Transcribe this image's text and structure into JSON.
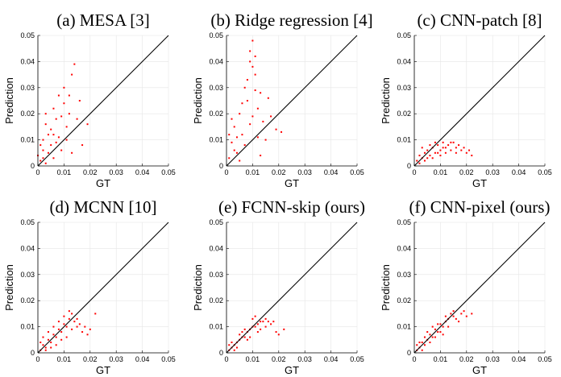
{
  "chart_data": [
    {
      "type": "scatter",
      "title": "(a) MESA [3]",
      "xlabel": "GT",
      "ylabel": "Prediction",
      "xlim": [
        0,
        0.05
      ],
      "ylim": [
        0,
        0.05
      ],
      "xticks": [
        "0",
        "0.01",
        "0.02",
        "0.03",
        "0.04",
        "0.05"
      ],
      "yticks": [
        "0",
        "0.01",
        "0.02",
        "0.03",
        "0.04",
        "0.05"
      ],
      "grid": true,
      "reference_line": "y = x",
      "point_color": "#ff0000",
      "points": [
        [
          0.001,
          0.002
        ],
        [
          0.002,
          0.006
        ],
        [
          0.003,
          0.001
        ],
        [
          0.004,
          0.012
        ],
        [
          0.005,
          0.008
        ],
        [
          0.006,
          0.003
        ],
        [
          0.007,
          0.018
        ],
        [
          0.008,
          0.011
        ],
        [
          0.009,
          0.006
        ],
        [
          0.01,
          0.024
        ],
        [
          0.011,
          0.015
        ],
        [
          0.012,
          0.02
        ],
        [
          0.013,
          0.035
        ],
        [
          0.014,
          0.039
        ],
        [
          0.006,
          0.022
        ],
        [
          0.003,
          0.016
        ],
        [
          0.002,
          0.01
        ],
        [
          0.008,
          0.027
        ],
        [
          0.01,
          0.03
        ],
        [
          0.015,
          0.018
        ],
        [
          0.017,
          0.008
        ],
        [
          0.019,
          0.016
        ],
        [
          0.001,
          0.008
        ],
        [
          0.004,
          0.005
        ],
        [
          0.005,
          0.014
        ],
        [
          0.007,
          0.009
        ],
        [
          0.009,
          0.019
        ],
        [
          0.011,
          0.01
        ],
        [
          0.012,
          0.027
        ],
        [
          0.0,
          0.004
        ],
        [
          0.002,
          0.003
        ],
        [
          0.006,
          0.012
        ],
        [
          0.013,
          0.005
        ],
        [
          0.016,
          0.025
        ],
        [
          0.003,
          0.02
        ]
      ]
    },
    {
      "type": "scatter",
      "title": "(b) Ridge regression [4]",
      "xlabel": "GT",
      "ylabel": "Prediction",
      "xlim": [
        0,
        0.05
      ],
      "ylim": [
        0,
        0.05
      ],
      "xticks": [
        "0",
        "0.01",
        "0.02",
        "0.03",
        "0.04",
        "0.05"
      ],
      "yticks": [
        "0",
        "0.01",
        "0.02",
        "0.03",
        "0.04",
        "0.05"
      ],
      "grid": true,
      "reference_line": "y = x",
      "point_color": "#ff0000",
      "points": [
        [
          0.001,
          0.003
        ],
        [
          0.002,
          0.009
        ],
        [
          0.003,
          0.015
        ],
        [
          0.004,
          0.005
        ],
        [
          0.005,
          0.02
        ],
        [
          0.006,
          0.012
        ],
        [
          0.007,
          0.03
        ],
        [
          0.008,
          0.025
        ],
        [
          0.009,
          0.04
        ],
        [
          0.01,
          0.048
        ],
        [
          0.011,
          0.035
        ],
        [
          0.012,
          0.022
        ],
        [
          0.013,
          0.028
        ],
        [
          0.014,
          0.017
        ],
        [
          0.015,
          0.01
        ],
        [
          0.017,
          0.019
        ],
        [
          0.019,
          0.014
        ],
        [
          0.021,
          0.013
        ],
        [
          0.002,
          0.018
        ],
        [
          0.004,
          0.011
        ],
        [
          0.006,
          0.024
        ],
        [
          0.008,
          0.033
        ],
        [
          0.009,
          0.044
        ],
        [
          0.01,
          0.038
        ],
        [
          0.011,
          0.029
        ],
        [
          0.012,
          0.011
        ],
        [
          0.003,
          0.006
        ],
        [
          0.005,
          0.002
        ],
        [
          0.007,
          0.008
        ],
        [
          0.013,
          0.004
        ],
        [
          0.016,
          0.026
        ],
        [
          0.001,
          0.012
        ],
        [
          0.009,
          0.016
        ],
        [
          0.01,
          0.019
        ],
        [
          0.011,
          0.042
        ]
      ]
    },
    {
      "type": "scatter",
      "title": "(c) CNN-patch [8]",
      "xlabel": "GT",
      "ylabel": "Prediction",
      "xlim": [
        0,
        0.05
      ],
      "ylim": [
        0,
        0.05
      ],
      "xticks": [
        "0",
        "0.01",
        "0.02",
        "0.03",
        "0.04",
        "0.05"
      ],
      "yticks": [
        "0",
        "0.01",
        "0.02",
        "0.03",
        "0.04",
        "0.05"
      ],
      "grid": true,
      "reference_line": "y = x",
      "point_color": "#ff0000",
      "points": [
        [
          0.001,
          0.002
        ],
        [
          0.002,
          0.004
        ],
        [
          0.003,
          0.003
        ],
        [
          0.004,
          0.005
        ],
        [
          0.005,
          0.006
        ],
        [
          0.006,
          0.004
        ],
        [
          0.007,
          0.007
        ],
        [
          0.008,
          0.005
        ],
        [
          0.009,
          0.008
        ],
        [
          0.01,
          0.006
        ],
        [
          0.011,
          0.009
        ],
        [
          0.012,
          0.007
        ],
        [
          0.013,
          0.008
        ],
        [
          0.014,
          0.006
        ],
        [
          0.015,
          0.009
        ],
        [
          0.016,
          0.007
        ],
        [
          0.017,
          0.008
        ],
        [
          0.018,
          0.006
        ],
        [
          0.019,
          0.007
        ],
        [
          0.02,
          0.005
        ],
        [
          0.021,
          0.006
        ],
        [
          0.022,
          0.004
        ],
        [
          0.002,
          0.001
        ],
        [
          0.004,
          0.002
        ],
        [
          0.006,
          0.008
        ],
        [
          0.008,
          0.009
        ],
        [
          0.01,
          0.004
        ],
        [
          0.012,
          0.005
        ],
        [
          0.003,
          0.007
        ],
        [
          0.005,
          0.003
        ],
        [
          0.009,
          0.005
        ],
        [
          0.011,
          0.007
        ],
        [
          0.014,
          0.009
        ],
        [
          0.016,
          0.005
        ],
        [
          0.007,
          0.003
        ]
      ]
    },
    {
      "type": "scatter",
      "title": "(d) MCNN [10]",
      "xlabel": "GT",
      "ylabel": "Prediction",
      "xlim": [
        0,
        0.05
      ],
      "ylim": [
        0,
        0.05
      ],
      "xticks": [
        "0",
        "0.01",
        "0.02",
        "0.03",
        "0.04",
        "0.05"
      ],
      "yticks": [
        "0",
        "0.01",
        "0.02",
        "0.03",
        "0.04",
        "0.05"
      ],
      "grid": true,
      "reference_line": "y = x",
      "point_color": "#ff0000",
      "points": [
        [
          0.001,
          0.001
        ],
        [
          0.002,
          0.003
        ],
        [
          0.003,
          0.002
        ],
        [
          0.004,
          0.005
        ],
        [
          0.005,
          0.004
        ],
        [
          0.006,
          0.007
        ],
        [
          0.007,
          0.006
        ],
        [
          0.008,
          0.009
        ],
        [
          0.009,
          0.008
        ],
        [
          0.01,
          0.011
        ],
        [
          0.011,
          0.01
        ],
        [
          0.012,
          0.013
        ],
        [
          0.013,
          0.009
        ],
        [
          0.014,
          0.012
        ],
        [
          0.015,
          0.01
        ],
        [
          0.016,
          0.011
        ],
        [
          0.017,
          0.008
        ],
        [
          0.018,
          0.01
        ],
        [
          0.019,
          0.007
        ],
        [
          0.02,
          0.009
        ],
        [
          0.022,
          0.015
        ],
        [
          0.002,
          0.006
        ],
        [
          0.004,
          0.008
        ],
        [
          0.006,
          0.01
        ],
        [
          0.008,
          0.012
        ],
        [
          0.01,
          0.014
        ],
        [
          0.012,
          0.016
        ],
        [
          0.003,
          0.001
        ],
        [
          0.005,
          0.002
        ],
        [
          0.007,
          0.003
        ],
        [
          0.009,
          0.005
        ],
        [
          0.011,
          0.006
        ],
        [
          0.013,
          0.015
        ],
        [
          0.001,
          0.004
        ],
        [
          0.015,
          0.013
        ]
      ]
    },
    {
      "type": "scatter",
      "title": "(e) FCNN-skip (ours)",
      "xlabel": "GT",
      "ylabel": "Prediction",
      "xlim": [
        0,
        0.05
      ],
      "ylim": [
        0,
        0.05
      ],
      "xticks": [
        "0",
        "0.01",
        "0.02",
        "0.03",
        "0.04",
        "0.05"
      ],
      "yticks": [
        "0",
        "0.01",
        "0.02",
        "0.03",
        "0.04",
        "0.05"
      ],
      "grid": true,
      "reference_line": "y = x",
      "point_color": "#ff0000",
      "points": [
        [
          0.001,
          0.001
        ],
        [
          0.002,
          0.002
        ],
        [
          0.003,
          0.003
        ],
        [
          0.004,
          0.004
        ],
        [
          0.005,
          0.005
        ],
        [
          0.006,
          0.006
        ],
        [
          0.007,
          0.006
        ],
        [
          0.008,
          0.008
        ],
        [
          0.009,
          0.009
        ],
        [
          0.01,
          0.01
        ],
        [
          0.011,
          0.01
        ],
        [
          0.012,
          0.011
        ],
        [
          0.013,
          0.012
        ],
        [
          0.014,
          0.012
        ],
        [
          0.015,
          0.013
        ],
        [
          0.016,
          0.012
        ],
        [
          0.017,
          0.011
        ],
        [
          0.019,
          0.008
        ],
        [
          0.02,
          0.007
        ],
        [
          0.022,
          0.009
        ],
        [
          0.002,
          0.004
        ],
        [
          0.004,
          0.002
        ],
        [
          0.006,
          0.008
        ],
        [
          0.008,
          0.005
        ],
        [
          0.01,
          0.013
        ],
        [
          0.012,
          0.008
        ],
        [
          0.003,
          0.001
        ],
        [
          0.005,
          0.007
        ],
        [
          0.007,
          0.009
        ],
        [
          0.009,
          0.006
        ],
        [
          0.011,
          0.014
        ],
        [
          0.013,
          0.009
        ],
        [
          0.001,
          0.003
        ],
        [
          0.015,
          0.01
        ],
        [
          0.018,
          0.012
        ]
      ]
    },
    {
      "type": "scatter",
      "title": "(f) CNN-pixel (ours)",
      "xlabel": "GT",
      "ylabel": "Prediction",
      "xlim": [
        0,
        0.05
      ],
      "ylim": [
        0,
        0.05
      ],
      "xticks": [
        "0",
        "0.01",
        "0.02",
        "0.03",
        "0.04",
        "0.05"
      ],
      "yticks": [
        "0",
        "0.01",
        "0.02",
        "0.03",
        "0.04",
        "0.05"
      ],
      "grid": true,
      "reference_line": "y = x",
      "point_color": "#ff0000",
      "points": [
        [
          0.001,
          0.001
        ],
        [
          0.002,
          0.002
        ],
        [
          0.003,
          0.004
        ],
        [
          0.004,
          0.003
        ],
        [
          0.005,
          0.005
        ],
        [
          0.006,
          0.007
        ],
        [
          0.007,
          0.006
        ],
        [
          0.008,
          0.009
        ],
        [
          0.009,
          0.008
        ],
        [
          0.01,
          0.011
        ],
        [
          0.011,
          0.01
        ],
        [
          0.012,
          0.012
        ],
        [
          0.013,
          0.013
        ],
        [
          0.014,
          0.015
        ],
        [
          0.015,
          0.014
        ],
        [
          0.016,
          0.013
        ],
        [
          0.018,
          0.015
        ],
        [
          0.02,
          0.014
        ],
        [
          0.022,
          0.015
        ],
        [
          0.002,
          0.004
        ],
        [
          0.004,
          0.006
        ],
        [
          0.006,
          0.004
        ],
        [
          0.008,
          0.006
        ],
        [
          0.01,
          0.008
        ],
        [
          0.012,
          0.014
        ],
        [
          0.003,
          0.001
        ],
        [
          0.005,
          0.008
        ],
        [
          0.007,
          0.01
        ],
        [
          0.009,
          0.011
        ],
        [
          0.011,
          0.007
        ],
        [
          0.013,
          0.01
        ],
        [
          0.001,
          0.003
        ],
        [
          0.015,
          0.016
        ],
        [
          0.017,
          0.012
        ],
        [
          0.019,
          0.016
        ]
      ]
    }
  ]
}
